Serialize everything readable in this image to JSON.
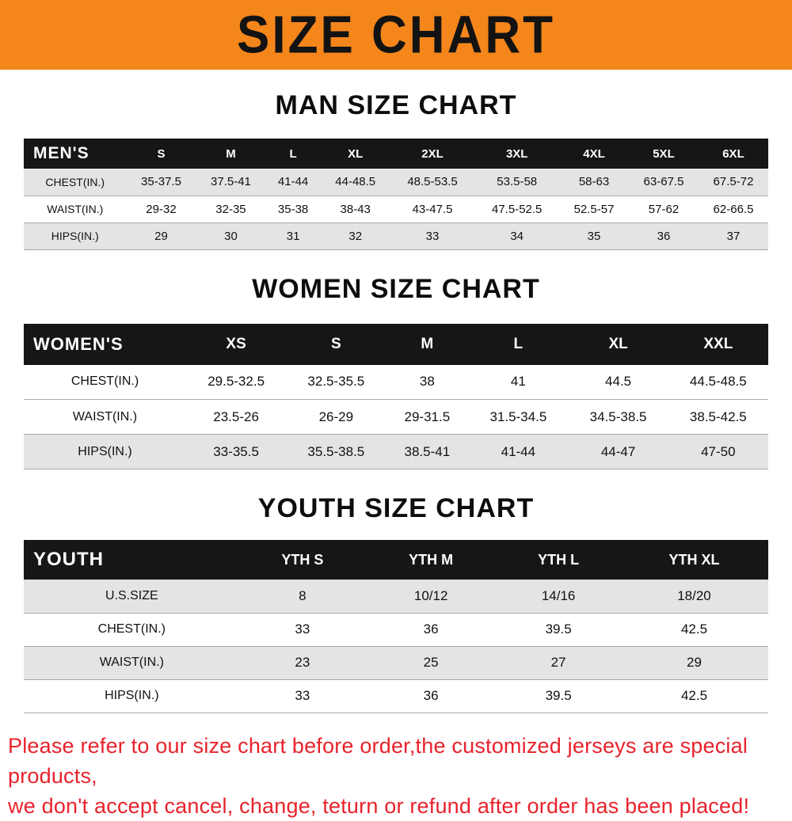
{
  "banner": {
    "title": "SIZE CHART"
  },
  "man": {
    "heading": "MAN SIZE CHART",
    "header": [
      "MEN'S",
      "S",
      "M",
      "L",
      "XL",
      "2XL",
      "3XL",
      "4XL",
      "5XL",
      "6XL"
    ],
    "rows": [
      [
        "CHEST(IN.)",
        "35-37.5",
        "37.5-41",
        "41-44",
        "44-48.5",
        "48.5-53.5",
        "53.5-58",
        "58-63",
        "63-67.5",
        "67.5-72"
      ],
      [
        "WAIST(IN.)",
        "29-32",
        "32-35",
        "35-38",
        "38-43",
        "43-47.5",
        "47.5-52.5",
        "52.5-57",
        "57-62",
        "62-66.5"
      ],
      [
        "HIPS(IN.)",
        "29",
        "30",
        "31",
        "32",
        "33",
        "34",
        "35",
        "36",
        "37"
      ]
    ]
  },
  "women": {
    "heading": "WOMEN SIZE CHART",
    "header": [
      "WOMEN'S",
      "XS",
      "S",
      "M",
      "L",
      "XL",
      "XXL"
    ],
    "rows": [
      [
        "CHEST(IN.)",
        "29.5-32.5",
        "32.5-35.5",
        "38",
        "41",
        "44.5",
        "44.5-48.5"
      ],
      [
        "WAIST(IN.)",
        "23.5-26",
        "26-29",
        "29-31.5",
        "31.5-34.5",
        "34.5-38.5",
        "38.5-42.5"
      ],
      [
        "HIPS(IN.)",
        "33-35.5",
        "35.5-38.5",
        "38.5-41",
        "41-44",
        "44-47",
        "47-50"
      ]
    ]
  },
  "youth": {
    "heading": "YOUTH SIZE CHART",
    "header": [
      "YOUTH",
      "YTH S",
      "YTH M",
      "YTH L",
      "YTH XL"
    ],
    "rows": [
      [
        "U.S.SIZE",
        "8",
        "10/12",
        "14/16",
        "18/20"
      ],
      [
        "CHEST(IN.)",
        "33",
        "36",
        "39.5",
        "42.5"
      ],
      [
        "WAIST(IN.)",
        "23",
        "25",
        "27",
        "29"
      ],
      [
        "HIPS(IN.)",
        "33",
        "36",
        "39.5",
        "42.5"
      ]
    ]
  },
  "footer": {
    "line1": "Please refer to our size chart before order,the customized jerseys are special products,",
    "line2": "we don't accept cancel, change, teturn or refund after order has been placed!"
  },
  "colors": {
    "banner_bg": "#f5861c",
    "table_header_bg": "#161616",
    "shaded_row_bg": "#e4e4e4",
    "disclaimer_red": "#e8232c"
  }
}
